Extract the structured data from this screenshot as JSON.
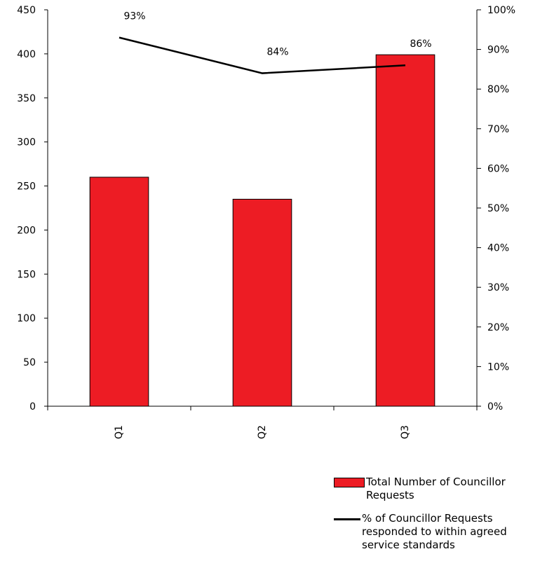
{
  "chart_data": {
    "type": "bar",
    "categories": [
      "Q1",
      "Q2",
      "Q3"
    ],
    "series": [
      {
        "name": "Total Number of Councillor Requests",
        "type": "bar",
        "axis": "left",
        "values": [
          260,
          235,
          399
        ],
        "color": "#ed1c24"
      },
      {
        "name": "% of Councillor Requests responded to within agreed service standards",
        "type": "line",
        "axis": "right",
        "values": [
          93,
          84,
          86
        ],
        "labels": [
          "93%",
          "84%",
          "86%"
        ],
        "color": "#000000"
      }
    ],
    "left_axis": {
      "ylim": [
        0,
        450
      ],
      "ticks": [
        "0",
        "50",
        "100",
        "150",
        "200",
        "250",
        "300",
        "350",
        "400",
        "450"
      ]
    },
    "right_axis": {
      "ylim": [
        0,
        100
      ],
      "ticks": [
        "0%",
        "10%",
        "20%",
        "30%",
        "40%",
        "50%",
        "60%",
        "70%",
        "80%",
        "90%",
        "100%"
      ]
    },
    "grid": false,
    "legend_position": "bottom-right"
  },
  "legend": {
    "bar_label": "Total Number of Councillor Requests",
    "line_label": "% of Councillor Requests responded to within agreed service standards"
  }
}
